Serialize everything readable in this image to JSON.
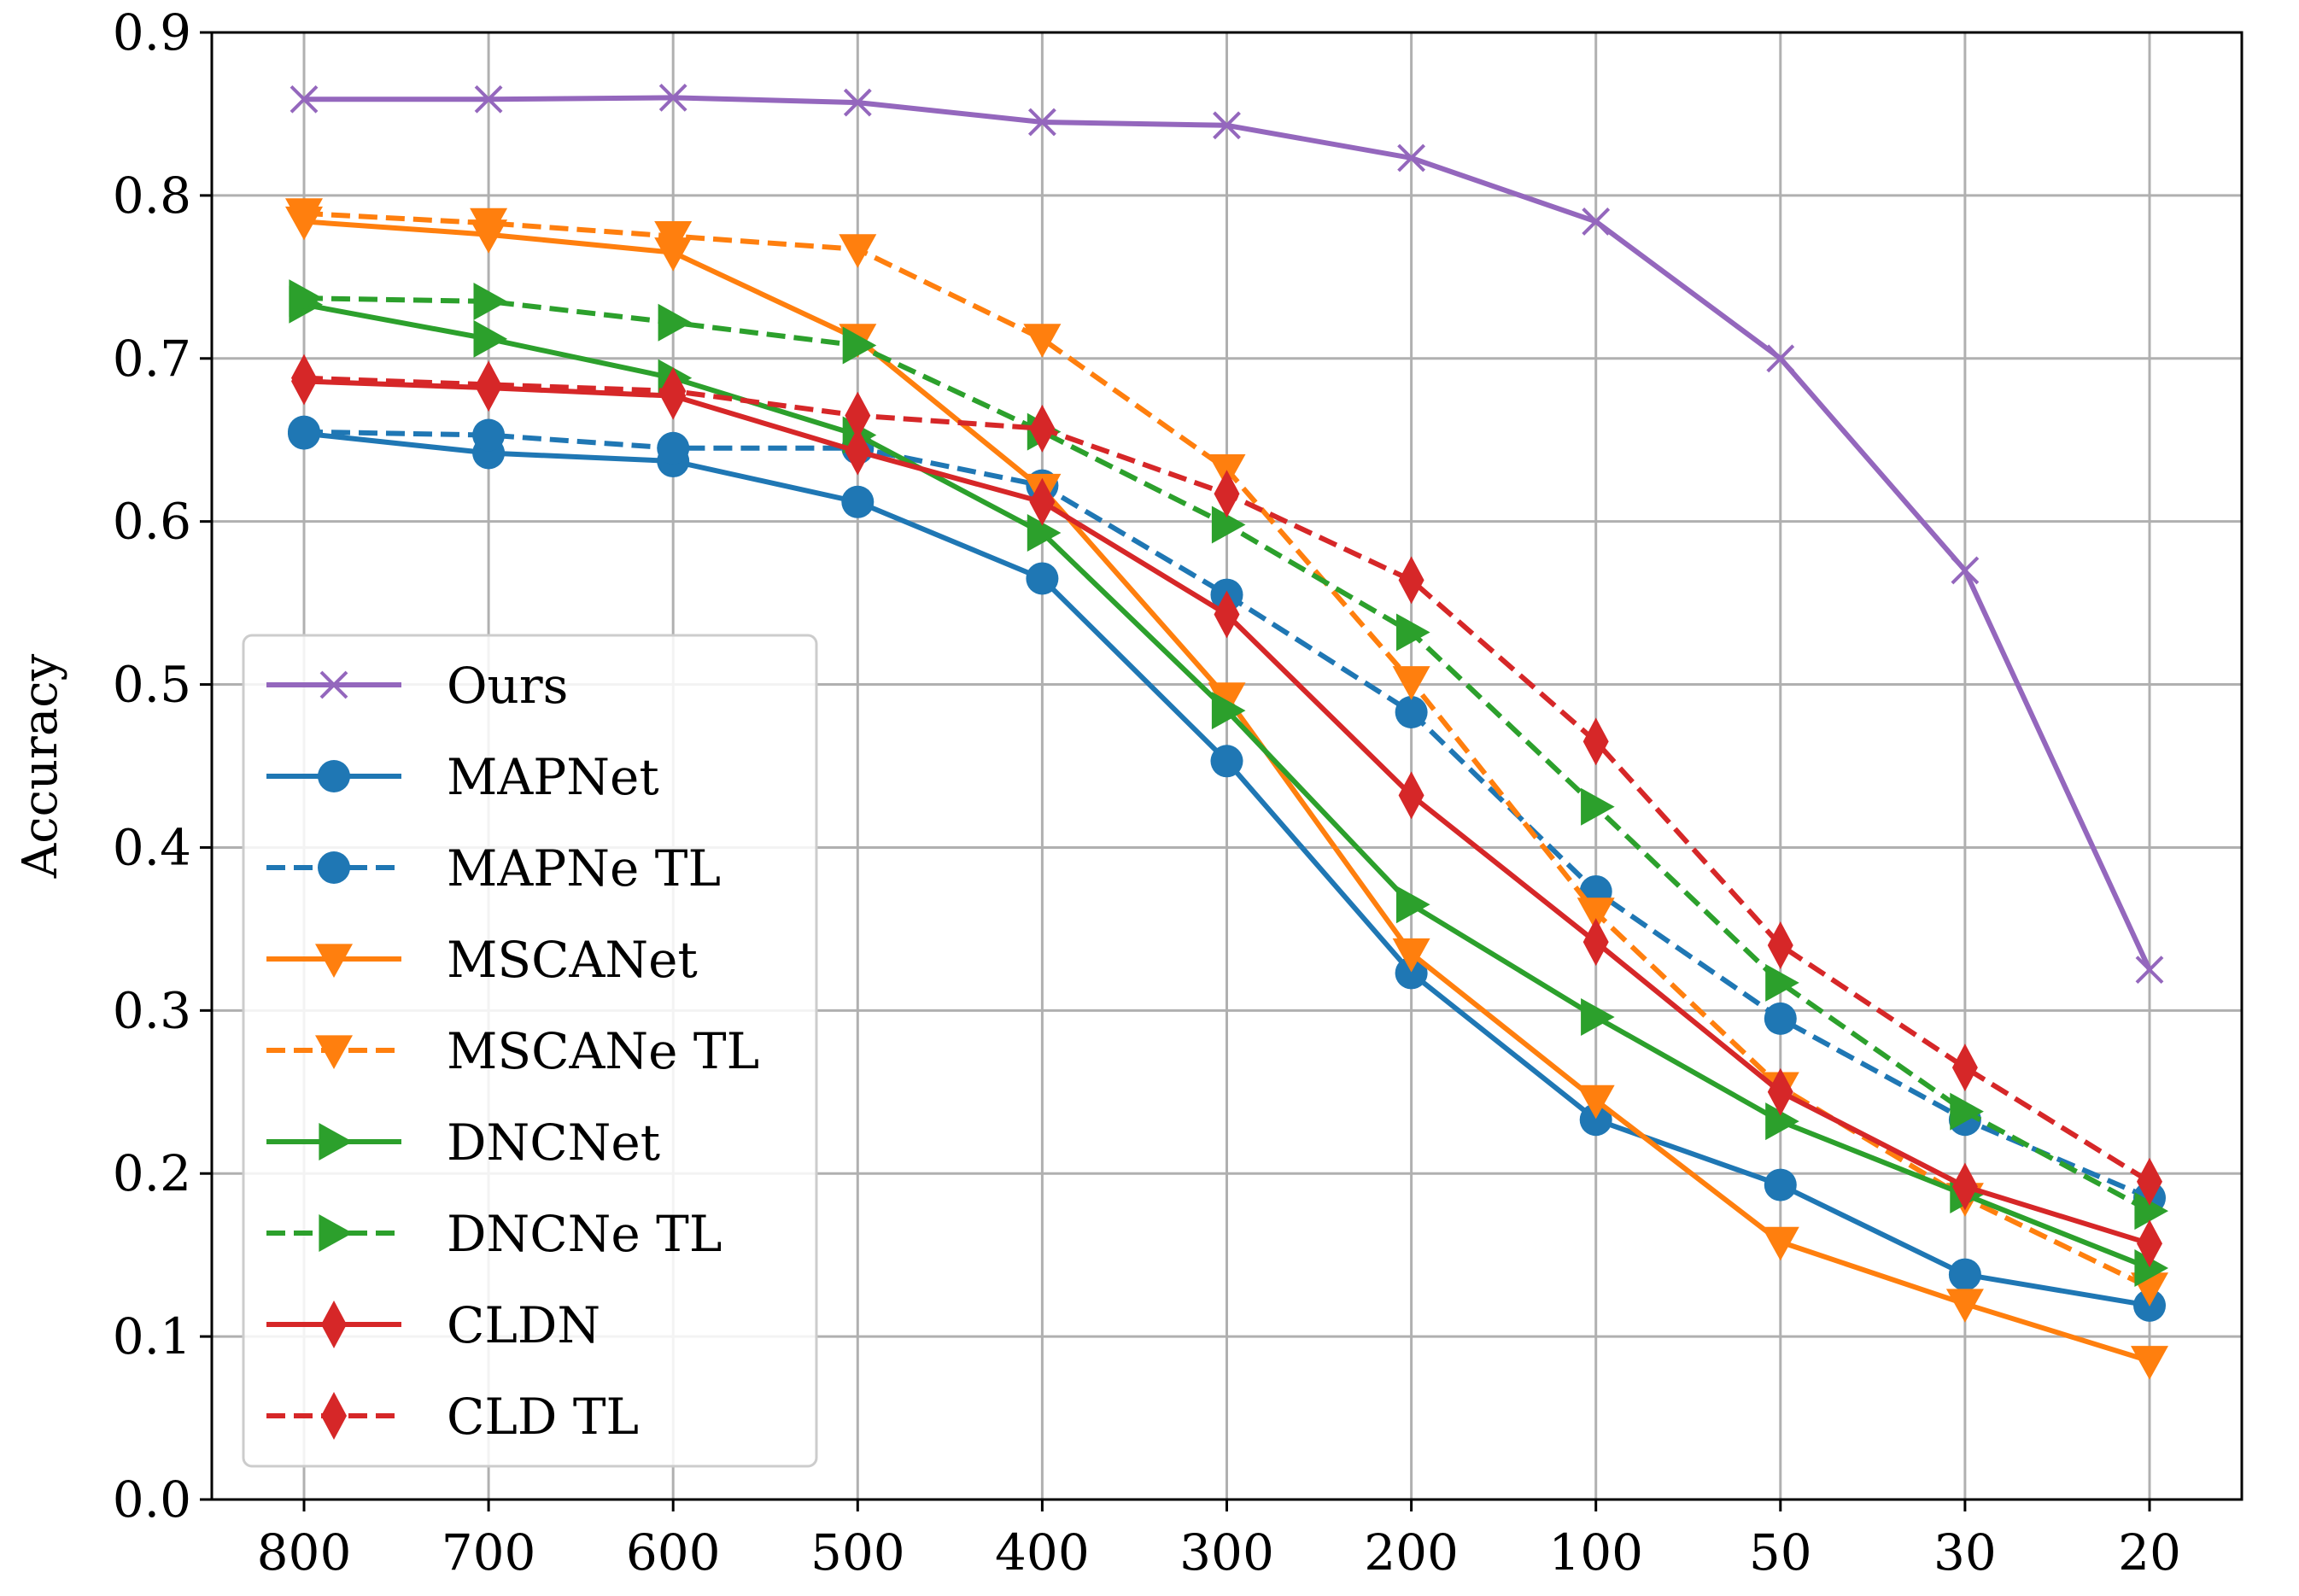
{
  "chart_data": {
    "type": "line",
    "title": "",
    "xlabel": "",
    "ylabel": "Accuracy",
    "categories": [
      "800",
      "700",
      "600",
      "500",
      "400",
      "300",
      "200",
      "100",
      "50",
      "30",
      "20"
    ],
    "ylim": [
      0.0,
      0.9
    ],
    "yticks": [
      "0.0",
      "0.1",
      "0.2",
      "0.3",
      "0.4",
      "0.5",
      "0.6",
      "0.7",
      "0.8",
      "0.9"
    ],
    "grid": true,
    "legend_position": "lower-left",
    "series": [
      {
        "name": "Ours",
        "color": "#9467bd",
        "dash": "solid",
        "marker": "x",
        "values": [
          0.859,
          0.859,
          0.86,
          0.857,
          0.845,
          0.843,
          0.823,
          0.784,
          0.7,
          0.57,
          0.325
        ]
      },
      {
        "name": "MAPNet",
        "color": "#1f77b4",
        "dash": "solid",
        "marker": "circle",
        "values": [
          0.654,
          0.642,
          0.637,
          0.612,
          0.565,
          0.453,
          0.323,
          0.233,
          0.193,
          0.138,
          0.119
        ]
      },
      {
        "name": "MAPNe TL",
        "color": "#1f77b4",
        "dash": "dashed",
        "marker": "circle",
        "values": [
          0.655,
          0.653,
          0.645,
          0.645,
          0.622,
          0.555,
          0.483,
          0.373,
          0.295,
          0.233,
          0.185
        ]
      },
      {
        "name": "MSCANet",
        "color": "#ff7f0e",
        "dash": "solid",
        "marker": "triangle-down",
        "values": [
          0.784,
          0.776,
          0.765,
          0.712,
          0.62,
          0.492,
          0.335,
          0.245,
          0.158,
          0.12,
          0.085
        ]
      },
      {
        "name": "MSCANe TL",
        "color": "#ff7f0e",
        "dash": "dashed",
        "marker": "triangle-down",
        "values": [
          0.789,
          0.783,
          0.775,
          0.767,
          0.712,
          0.632,
          0.502,
          0.36,
          0.253,
          0.185,
          0.13
        ]
      },
      {
        "name": "DNCNet",
        "color": "#2ca02c",
        "dash": "solid",
        "marker": "triangle-right",
        "values": [
          0.733,
          0.712,
          0.688,
          0.653,
          0.593,
          0.484,
          0.365,
          0.296,
          0.232,
          0.187,
          0.142
        ]
      },
      {
        "name": "DNCNe TL",
        "color": "#2ca02c",
        "dash": "dashed",
        "marker": "triangle-right",
        "values": [
          0.737,
          0.735,
          0.722,
          0.708,
          0.655,
          0.598,
          0.532,
          0.425,
          0.317,
          0.238,
          0.177
        ]
      },
      {
        "name": "CLDN",
        "color": "#d62728",
        "dash": "solid",
        "marker": "diamond",
        "values": [
          0.686,
          0.682,
          0.677,
          0.643,
          0.612,
          0.543,
          0.432,
          0.342,
          0.25,
          0.192,
          0.157
        ]
      },
      {
        "name": "CLD TL",
        "color": "#d62728",
        "dash": "dashed",
        "marker": "diamond",
        "values": [
          0.688,
          0.684,
          0.68,
          0.665,
          0.657,
          0.617,
          0.564,
          0.465,
          0.34,
          0.265,
          0.195
        ]
      }
    ]
  }
}
